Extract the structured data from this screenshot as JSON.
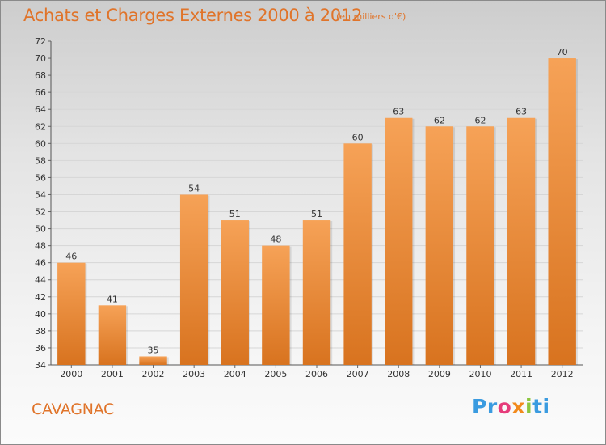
{
  "header": {
    "title": "Achats et Charges Externes 2000 à 2012",
    "unit": "(en milliers d'€)"
  },
  "footer": {
    "commune": "CAVAGNAC",
    "logo": [
      "Pr",
      "o",
      "x",
      "i",
      "ti"
    ]
  },
  "colors": {
    "bar_top": "#f6a257",
    "bar_bottom": "#d8731f",
    "text_accent": "#e0742a"
  },
  "chart_data": {
    "type": "bar",
    "title": "Achats et Charges Externes 2000 à 2012",
    "subtitle": "(en milliers d'€)",
    "categories": [
      "2000",
      "2001",
      "2002",
      "2003",
      "2004",
      "2005",
      "2006",
      "2007",
      "2008",
      "2009",
      "2010",
      "2011",
      "2012"
    ],
    "values": [
      46,
      41,
      35,
      54,
      51,
      48,
      51,
      60,
      63,
      62,
      62,
      63,
      70
    ],
    "data_labels": [
      "46",
      "41",
      "35",
      "54",
      "51",
      "48",
      "51",
      "60",
      "63",
      "62",
      "62",
      "63",
      "70"
    ],
    "ylim": [
      34,
      72
    ],
    "yticks": [
      34,
      36,
      38,
      40,
      42,
      44,
      46,
      48,
      50,
      52,
      54,
      56,
      58,
      60,
      62,
      64,
      66,
      68,
      70,
      72
    ],
    "grid": true,
    "xlabel": "",
    "ylabel": ""
  }
}
